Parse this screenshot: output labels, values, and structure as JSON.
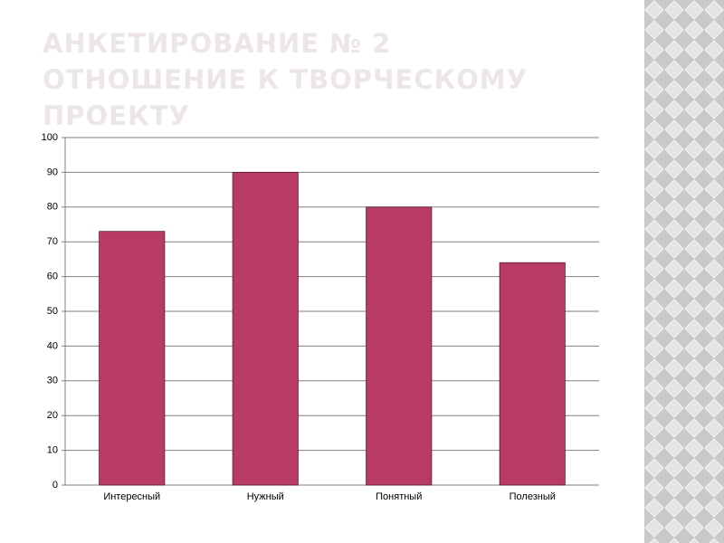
{
  "chart_data": {
    "type": "bar",
    "title": [
      "АНКЕТИРОВАНИЕ № 2",
      "ОТНОШЕНИЕ К ТВОРЧЕСКОМУ ПРОЕКТУ"
    ],
    "categories": [
      "Интересный",
      "Нужный",
      "Понятный",
      "Полезный"
    ],
    "values": [
      73,
      90,
      80,
      64
    ],
    "color": "#b83b67",
    "ylim": [
      0,
      100
    ],
    "yticks": [
      0,
      10,
      20,
      30,
      40,
      50,
      60,
      70,
      80,
      90,
      100
    ],
    "grid": true
  }
}
